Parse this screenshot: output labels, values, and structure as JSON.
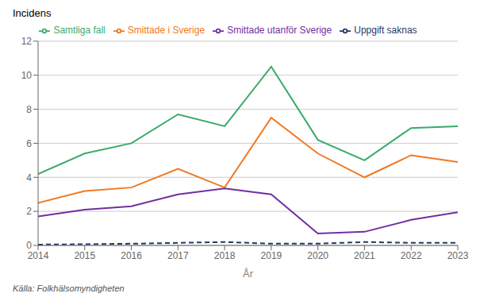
{
  "chart_data": {
    "type": "line",
    "x": [
      2014,
      2015,
      2016,
      2017,
      2018,
      2019,
      2020,
      2021,
      2022,
      2023
    ],
    "series": [
      {
        "name": "Samtliga fall",
        "color": "#3aaa6a",
        "line_style": "solid",
        "values": [
          4.2,
          5.4,
          6.0,
          7.7,
          7.0,
          10.5,
          6.2,
          5.0,
          6.9,
          7.0
        ]
      },
      {
        "name": "Smittade i Sverige",
        "color": "#f07820",
        "line_style": "solid",
        "values": [
          2.5,
          3.2,
          3.4,
          4.5,
          3.4,
          7.5,
          5.4,
          4.0,
          5.3,
          4.9
        ]
      },
      {
        "name": "Smittade utanför Sverige",
        "color": "#7030a0",
        "line_style": "solid",
        "values": [
          1.7,
          2.1,
          2.3,
          3.0,
          3.35,
          3.0,
          0.7,
          0.8,
          1.5,
          1.95
        ]
      },
      {
        "name": "Uppgift saknas",
        "color": "#1f3864",
        "line_style": "dashed",
        "values": [
          0.05,
          0.07,
          0.1,
          0.15,
          0.2,
          0.1,
          0.1,
          0.2,
          0.15,
          0.15
        ]
      }
    ],
    "xlabel": "År",
    "ylabel": "Incidens",
    "xlim": [
      2014,
      2023
    ],
    "xticks": [
      2014,
      2015,
      2016,
      2017,
      2018,
      2019,
      2020,
      2021,
      2022,
      2023
    ],
    "ylim": [
      0,
      12
    ],
    "yticks": [
      0,
      2,
      4,
      6,
      8,
      10,
      12
    ],
    "grid": true,
    "legend": "top",
    "annotations": [
      "Källa: Folkhälsomyndigheten"
    ]
  }
}
